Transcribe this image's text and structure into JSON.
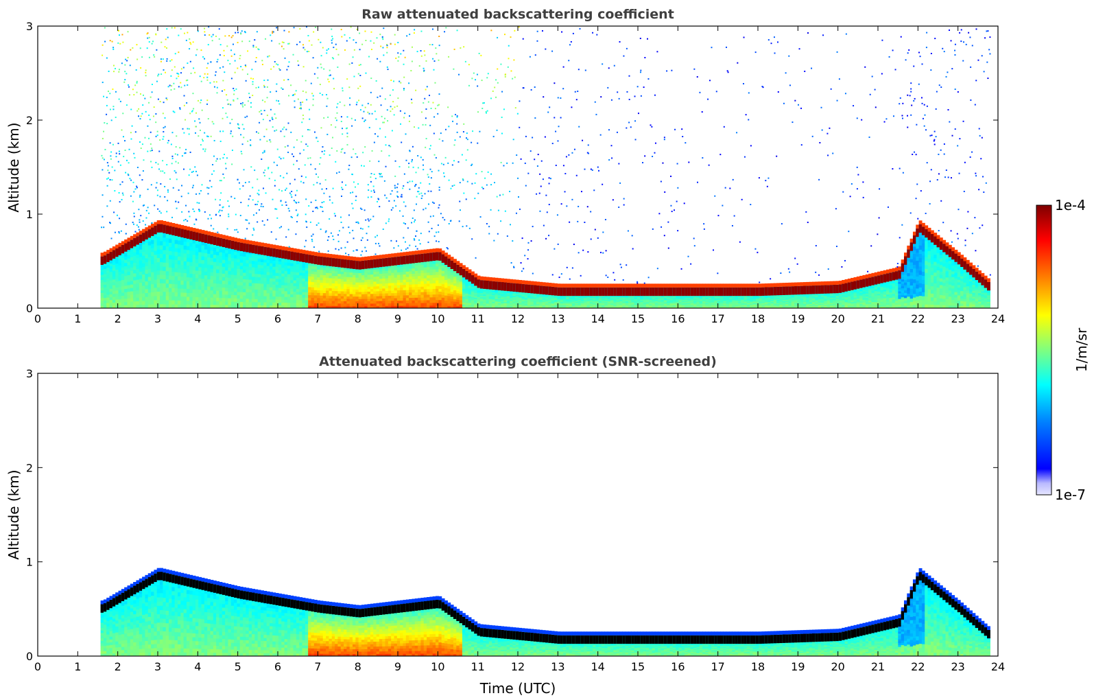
{
  "chart_data": [
    {
      "type": "heatmap",
      "title": "Raw attenuated backscattering coefficient",
      "xlabel": "",
      "ylabel": "Altitude (km)",
      "xlim": [
        0,
        24
      ],
      "ylim": [
        0,
        3
      ],
      "x_ticks": [
        "0",
        "1",
        "2",
        "3",
        "4",
        "5",
        "6",
        "7",
        "8",
        "9",
        "10",
        "11",
        "12",
        "13",
        "14",
        "15",
        "16",
        "17",
        "18",
        "19",
        "20",
        "21",
        "22",
        "23",
        "24"
      ],
      "y_ticks": [
        "0",
        "1",
        "2",
        "3"
      ],
      "data_start_time": 1.57,
      "data_end_time": 23.8,
      "aerosol_layer_top_km": [
        {
          "t": 1.6,
          "z": 0.55
        },
        {
          "t": 3,
          "z": 0.9
        },
        {
          "t": 5,
          "z": 0.7
        },
        {
          "t": 7,
          "z": 0.55
        },
        {
          "t": 8,
          "z": 0.5
        },
        {
          "t": 10,
          "z": 0.6
        },
        {
          "t": 11,
          "z": 0.3
        },
        {
          "t": 13,
          "z": 0.22
        },
        {
          "t": 18,
          "z": 0.22
        },
        {
          "t": 20,
          "z": 0.25
        },
        {
          "t": 21.5,
          "z": 0.4
        },
        {
          "t": 22,
          "z": 0.9
        },
        {
          "t": 23,
          "z": 0.55
        },
        {
          "t": 23.8,
          "z": 0.25
        }
      ]
    },
    {
      "type": "heatmap",
      "title": "Attenuated backscattering coefficient (SNR-screened)",
      "xlabel": "Time (UTC)",
      "ylabel": "Altitude (km)",
      "xlim": [
        0,
        24
      ],
      "ylim": [
        0,
        3
      ],
      "x_ticks": [
        "0",
        "1",
        "2",
        "3",
        "4",
        "5",
        "6",
        "7",
        "8",
        "9",
        "10",
        "11",
        "12",
        "13",
        "14",
        "15",
        "16",
        "17",
        "18",
        "19",
        "20",
        "21",
        "22",
        "23",
        "24"
      ],
      "y_ticks": [
        "0",
        "1",
        "2",
        "3"
      ],
      "data_start_time": 1.57,
      "data_end_time": 23.8
    }
  ],
  "colorbar": {
    "label": "1/m/sr",
    "max_label": "1e-4",
    "min_label": "1e-7",
    "colormap": "jet",
    "colors": [
      "#00007f",
      "#0000ff",
      "#007fff",
      "#00ffff",
      "#7fff7f",
      "#ffff00",
      "#ff7f00",
      "#ff0000",
      "#7f0000"
    ]
  },
  "colors": {
    "cloud_core": "#7f0000",
    "screened_cloud": "#000000",
    "background": "#ffffff"
  }
}
